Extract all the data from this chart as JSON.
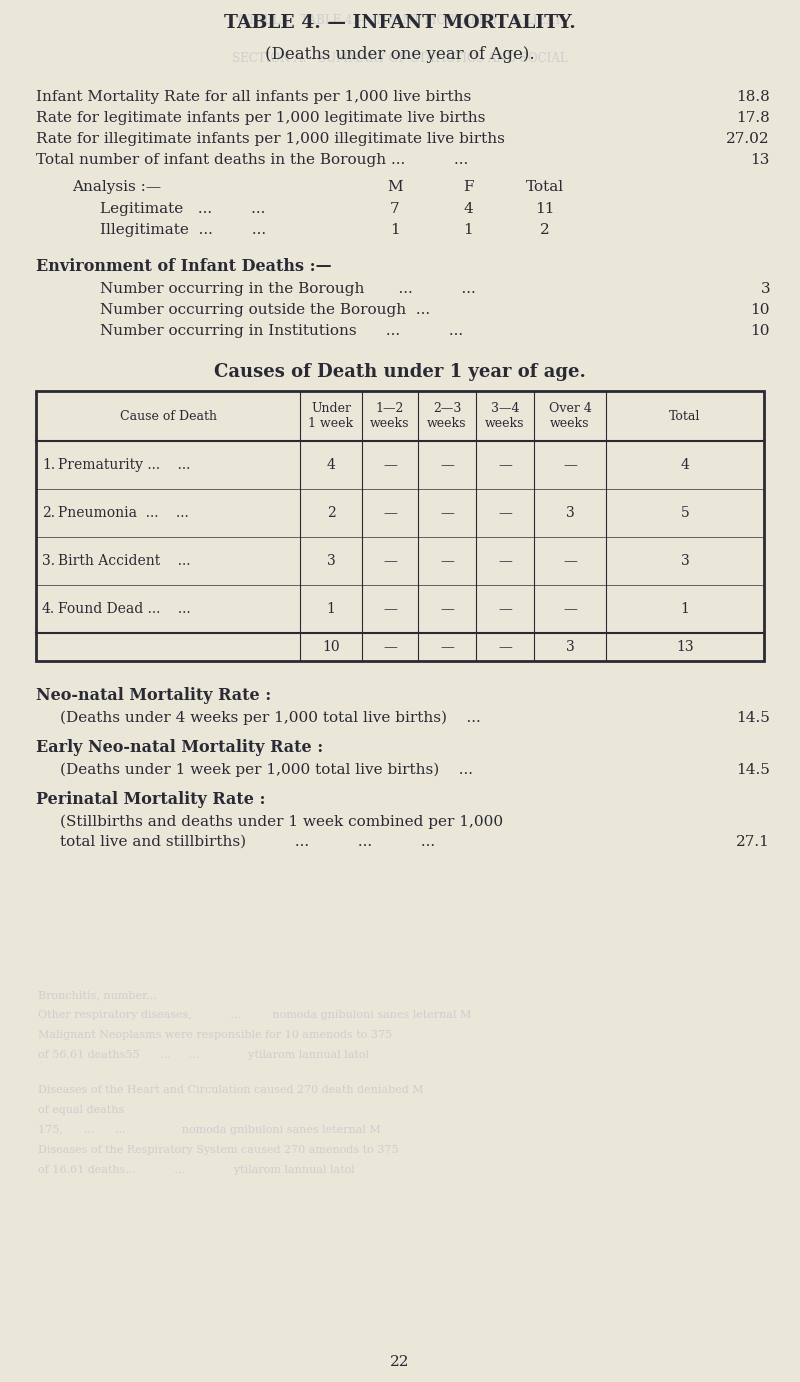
{
  "bg_color": "#eae6d8",
  "text_color": "#2a2a35",
  "ghost_color": "#8090b8",
  "title1": "TABLE 4. — INFANT MORTALITY.",
  "title2": "(Deaths under one year of Age).",
  "ghost_title1": "OTADLE   TABLE 4.— INFANT MORTALITY.   G.LIEAT",
  "ghost_title2": "SECTION A.—SUMMARY OF STATISTICS AND SOCIAL",
  "stats": [
    {
      "text": "Infant Mortality Rate for all infants per 1,000 live births",
      "value": "18.8"
    },
    {
      "text": "Rate for legitimate infants per 1,000 legitimate live births",
      "value": "17.8"
    },
    {
      "text": "Rate for illegitimate infants per 1,000 illegitimate live births",
      "value": "27.02"
    },
    {
      "text": "Total number of infant deaths in the Borough ...          ...",
      "value": "13"
    }
  ],
  "analysis_header": "Analysis :—",
  "analysis_rows": [
    {
      "label": "Legitimate   ...        ...",
      "m": "7",
      "f": "4",
      "total": "11"
    },
    {
      "label": "Illegitimate  ...        ...",
      "m": "1",
      "f": "1",
      "total": "2"
    }
  ],
  "env_header": "Environment of Infant Deaths :—",
  "env_rows": [
    {
      "text": "Number occurring in the Borough       ...          ...",
      "value": "3"
    },
    {
      "text": "Number occurring outside the Borough  ...",
      "value": "10"
    },
    {
      "text": "Number occurring in Institutions      ...          ...",
      "value": "10"
    }
  ],
  "causes_title": "Causes of Death under 1 year of age.",
  "table_rows": [
    {
      "num": "1.",
      "cause": "Prematurity ...    ...",
      "under1": "4",
      "w12": "—",
      "w23": "—",
      "w34": "—",
      "over4": "—",
      "total": "4"
    },
    {
      "num": "2.",
      "cause": "Pneumonia  ...    ...",
      "under1": "2",
      "w12": "—",
      "w23": "—",
      "w34": "—",
      "over4": "3",
      "total": "5"
    },
    {
      "num": "3.",
      "cause": "Birth Accident    ...",
      "under1": "3",
      "w12": "—",
      "w23": "—",
      "w34": "—",
      "over4": "—",
      "total": "3"
    },
    {
      "num": "4.",
      "cause": "Found Dead ...    ...",
      "under1": "1",
      "w12": "—",
      "w23": "—",
      "w34": "—",
      "over4": "—",
      "total": "1"
    }
  ],
  "table_totals": {
    "under1": "10",
    "w12": "—",
    "w23": "—",
    "w34": "—",
    "over4": "3",
    "total": "13"
  },
  "neo_natal_header": "Neo-natal Mortality Rate :",
  "neo_natal_desc": "(Deaths under 4 weeks per 1,000 total live births)    ...",
  "neo_natal_value": "14.5",
  "early_header": "Early Neo-natal Mortality Rate :",
  "early_desc": "(Deaths under 1 week per 1,000 total live births)    ...",
  "early_value": "14.5",
  "perinatal_header": "Perinatal Mortality Rate :",
  "perinatal_desc1": "(Stillbirths and deaths under 1 week combined per 1,000",
  "perinatal_desc2": "total live and stillbirths)          ...          ...          ...",
  "perinatal_value": "27.1",
  "ghost_lines": [
    [
      38,
      990,
      "Bronchitis, number..."
    ],
    [
      38,
      1010,
      "Other respiratory diseases,           ...         nomoda gnibuloni sanes leternal M"
    ],
    [
      38,
      1030,
      "Malignant Neoplasms were responsible for 10 amenods to 375"
    ],
    [
      38,
      1050,
      "of 56.61 deaths55      ...     ...              ytilarom lannual latol"
    ],
    [
      38,
      1085,
      "Diseases of the Heart and Circulation caused 270 death deniabed M"
    ],
    [
      38,
      1105,
      "of equal deaths"
    ],
    [
      38,
      1125,
      "175,      ...      ...                nomoda gnibuloni sanes leternal M"
    ],
    [
      38,
      1145,
      "Diseases of the Respiratory System caused 270 amenods to 375"
    ],
    [
      38,
      1165,
      "of 16.61 deaths...           ...              ytilarom lannual latol"
    ]
  ],
  "page_number": "22"
}
